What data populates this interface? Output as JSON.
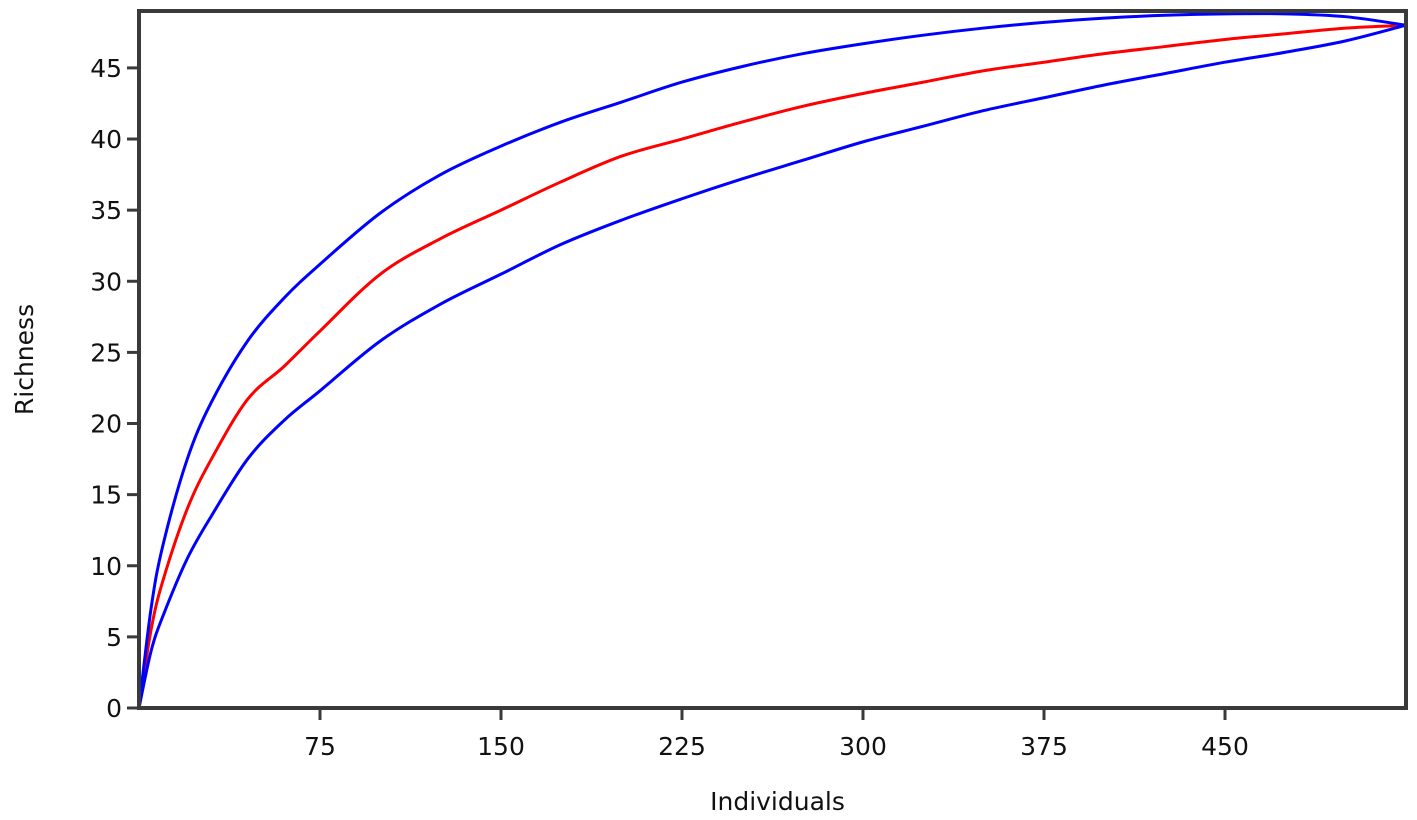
{
  "chart_data": {
    "type": "line",
    "title": "",
    "xlabel": "Individuals",
    "ylabel": "Richness",
    "xlim": [
      0,
      525
    ],
    "ylim": [
      0,
      49
    ],
    "x_ticks": [
      75,
      150,
      225,
      300,
      375,
      450
    ],
    "y_ticks": [
      0,
      5,
      10,
      15,
      20,
      25,
      30,
      35,
      40,
      45
    ],
    "grid": false,
    "legend": "none",
    "series": [
      {
        "role": "rarefaction estimate",
        "color": "#ff0000",
        "x": [
          0,
          5,
          10,
          20,
          30,
          45,
          60,
          75,
          100,
          125,
          150,
          175,
          200,
          225,
          250,
          275,
          300,
          325,
          350,
          375,
          400,
          425,
          450,
          475,
          500,
          525
        ],
        "y": [
          0,
          5.5,
          9.0,
          14.0,
          17.5,
          21.7,
          24.0,
          26.5,
          30.5,
          33.0,
          35.0,
          37.0,
          38.8,
          40.0,
          41.2,
          42.3,
          43.2,
          44.0,
          44.8,
          45.4,
          46.0,
          46.5,
          47.0,
          47.4,
          47.8,
          48.0
        ]
      },
      {
        "role": "upper confidence bound",
        "color": "#0000ff",
        "x": [
          0,
          5,
          10,
          20,
          30,
          45,
          60,
          75,
          100,
          125,
          150,
          175,
          200,
          225,
          250,
          275,
          300,
          325,
          350,
          375,
          400,
          425,
          450,
          475,
          500,
          525
        ],
        "y": [
          0,
          7.0,
          11.5,
          17.5,
          21.5,
          25.8,
          28.8,
          31.2,
          34.8,
          37.5,
          39.5,
          41.2,
          42.6,
          44.0,
          45.1,
          46.0,
          46.7,
          47.3,
          47.8,
          48.2,
          48.5,
          48.7,
          48.8,
          48.8,
          48.6,
          48.0
        ]
      },
      {
        "role": "lower confidence bound",
        "color": "#0000ff",
        "x": [
          0,
          5,
          10,
          20,
          30,
          45,
          60,
          75,
          100,
          125,
          150,
          175,
          200,
          225,
          250,
          275,
          300,
          325,
          350,
          375,
          400,
          425,
          450,
          475,
          500,
          525
        ],
        "y": [
          0,
          4.0,
          6.5,
          10.5,
          13.5,
          17.5,
          20.2,
          22.3,
          25.8,
          28.4,
          30.5,
          32.6,
          34.3,
          35.8,
          37.2,
          38.5,
          39.8,
          40.9,
          42.0,
          42.9,
          43.8,
          44.6,
          45.4,
          46.1,
          46.9,
          48.0
        ]
      }
    ]
  }
}
